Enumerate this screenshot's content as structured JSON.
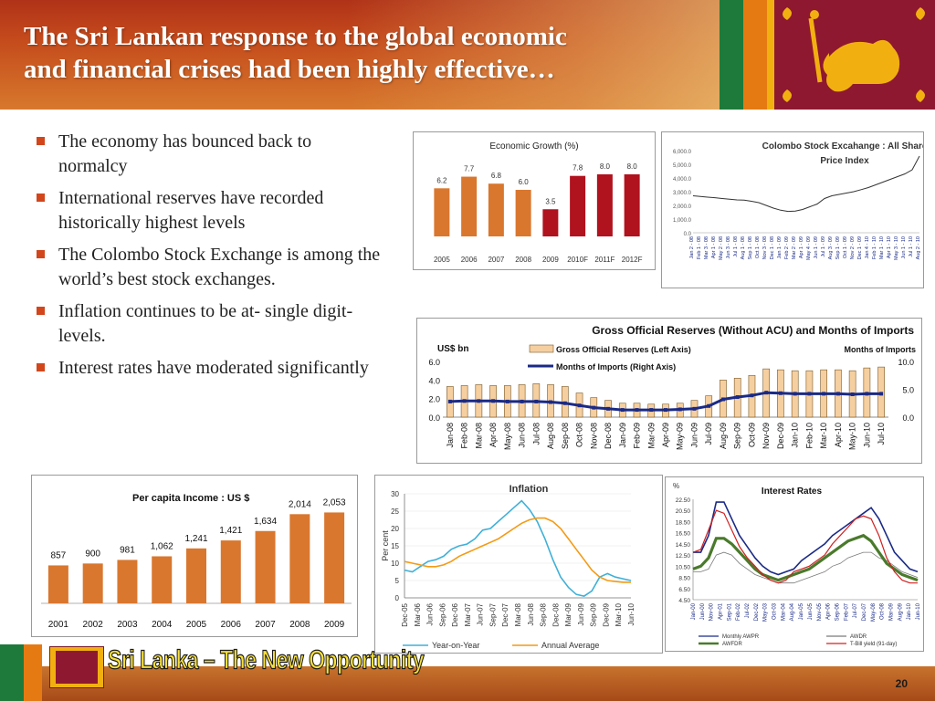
{
  "slide": {
    "title_line1": "The Sri Lankan response to the global economic",
    "title_line2": "and financial crises had been highly effective…",
    "page_number": "20",
    "slogan": "Sri Lanka – The New Opportunity"
  },
  "bullets": [
    "The economy has bounced back to normalcy",
    "International reserves have recorded historically highest levels",
    "The Colombo Stock Exchange is among the world’s best stock exchanges.",
    "Inflation continues to be at- single digit-levels.",
    "Interest rates have moderated significantly"
  ],
  "colors": {
    "header": "#c44a1c",
    "bar_orange": "#d9772f",
    "bar_red": "#b0121e",
    "navy": "#1a2a86",
    "bullet": "#d2461c",
    "slogan": "#f6df3a"
  },
  "chart_data": [
    {
      "type": "bar",
      "title": "Economic Growth (%)",
      "categories": [
        "2005",
        "2006",
        "2007",
        "2008",
        "2009",
        "2010F",
        "2011F",
        "2012F"
      ],
      "values": [
        6.2,
        7.7,
        6.8,
        6.0,
        3.5,
        7.8,
        8.0,
        8.0
      ],
      "labels": [
        "6.2",
        "7.7",
        "6.8",
        "6.0",
        "3.5",
        "7.8",
        "8.0",
        "8.0"
      ],
      "colors": [
        "#d9772f",
        "#d9772f",
        "#d9772f",
        "#d9772f",
        "#b0121e",
        "#b0121e",
        "#b0121e",
        "#b0121e"
      ],
      "ylim": [
        0,
        10
      ],
      "grid": false
    },
    {
      "type": "line",
      "title": "Colombo Stock Excahange : All Share Price Index",
      "yticks": [
        "0.0",
        "1,000.0",
        "2,000.0",
        "3,000.0",
        "4,000.0",
        "5,000.0",
        "6,000.0"
      ],
      "ylim": [
        0,
        6000
      ],
      "xticks": [
        "Jan 2 - 08",
        "Feb 1 - 08",
        "Mar 3 - 08",
        "Apr 1 - 08",
        "May 2 - 08",
        "Jun 3 - 08",
        "Jul 1 - 08",
        "Aug 1 - 08",
        "Sep 1 - 08",
        "Oct 1 - 08",
        "Nov 3 - 08",
        "Dec 1 - 08",
        "Jan 1 - 09",
        "Feb 2 - 09",
        "Mar 2 - 09",
        "Apr 1 - 09",
        "May 4 - 09",
        "Jun 1 - 09",
        "Jul 1 - 09",
        "Aug 3 - 09",
        "Sep 1 - 09",
        "Oct 1 - 09",
        "Nov 2 - 09",
        "Dec 1 - 09",
        "Jan 4 - 10",
        "Feb 1 - 10",
        "Mar 1 - 10",
        "Apr 1 - 10",
        "May 3 - 10",
        "Jun 1 - 10",
        "Jul 1 - 10",
        "Aug 2 - 10"
      ],
      "values": [
        2700,
        2650,
        2600,
        2560,
        2500,
        2450,
        2400,
        2380,
        2300,
        2200,
        2000,
        1800,
        1650,
        1560,
        1580,
        1700,
        1900,
        2100,
        2500,
        2700,
        2800,
        2900,
        3000,
        3150,
        3300,
        3500,
        3700,
        3900,
        4100,
        4300,
        4600,
        5600
      ]
    },
    {
      "type": "bar",
      "title": "Gross Official Reserves (Without ACU)  and Months of Imports",
      "ylabel": "US$ bn",
      "y2label": "Months of Imports",
      "legend": [
        "Gross Official Reserves  (Left Axis)",
        "Months of Imports (Right Axis)"
      ],
      "categories": [
        "Jan-08",
        "Feb-08",
        "Mar-08",
        "Apr-08",
        "May-08",
        "Jun-08",
        "Jul-08",
        "Aug-08",
        "Sep-08",
        "Oct-08",
        "Nov-08",
        "Dec-08",
        "Jan-09",
        "Feb-09",
        "Mar-09",
        "Apr-09",
        "May-09",
        "Jun-09",
        "Jul-09",
        "Aug-09",
        "Sep-09",
        "Oct-09",
        "Nov-09",
        "Dec-09",
        "Jan-10",
        "Feb-10",
        "Mar-10",
        "Apr-10",
        "May-10",
        "Jun-10",
        "Jul-10"
      ],
      "series": [
        {
          "name": "Gross Official Reserves  (Left Axis)",
          "axis": "left",
          "values": [
            3.3,
            3.4,
            3.5,
            3.4,
            3.4,
            3.5,
            3.6,
            3.5,
            3.3,
            2.6,
            2.1,
            1.8,
            1.5,
            1.5,
            1.4,
            1.4,
            1.5,
            1.8,
            2.3,
            4.0,
            4.2,
            4.5,
            5.2,
            5.1,
            5.0,
            5.0,
            5.1,
            5.1,
            5.0,
            5.3,
            5.4
          ]
        },
        {
          "name": "Months of Imports (Right Axis)",
          "axis": "right",
          "values": [
            2.8,
            2.9,
            2.9,
            2.9,
            2.8,
            2.8,
            2.8,
            2.7,
            2.5,
            2.1,
            1.7,
            1.5,
            1.3,
            1.3,
            1.3,
            1.3,
            1.4,
            1.5,
            2.0,
            3.2,
            3.6,
            3.9,
            4.4,
            4.3,
            4.2,
            4.2,
            4.2,
            4.2,
            4.1,
            4.2,
            4.2
          ]
        }
      ],
      "yticks": [
        "0.0",
        "2.0",
        "4.0",
        "6.0"
      ],
      "y2ticks": [
        "0.0",
        "5.0",
        "10.0"
      ],
      "ylim": [
        0,
        6
      ],
      "y2lim": [
        0,
        10
      ]
    },
    {
      "type": "bar",
      "title": "Per capita Income : US $",
      "categories": [
        "2001",
        "2002",
        "2003",
        "2004",
        "2005",
        "2006",
        "2007",
        "2008",
        "2009"
      ],
      "values": [
        857,
        900,
        981,
        1062,
        1241,
        1421,
        1634,
        2014,
        2053
      ],
      "labels": [
        "857",
        "900",
        "981",
        "1,062",
        "1,241",
        "1,421",
        "1,634",
        "2,014",
        "2,053"
      ],
      "ylim": [
        0,
        2200
      ]
    },
    {
      "type": "line",
      "title": "Inflation",
      "ylabel": "Per cent",
      "yticks": [
        "0",
        "5",
        "10",
        "15",
        "20",
        "25",
        "30"
      ],
      "ylim": [
        0,
        30
      ],
      "xticks": [
        "Dec-05",
        "Mar-06",
        "Jun-06",
        "Sep-06",
        "Dec-06",
        "Mar-07",
        "Jun-07",
        "Sep-07",
        "Dec-07",
        "Mar-08",
        "Jun-08",
        "Sep-08",
        "Dec-08",
        "Mar-09",
        "Jun-09",
        "Sep-09",
        "Dec-09",
        "Mar-10",
        "Jun-10"
      ],
      "series": [
        {
          "name": "Year-on-Year",
          "values": [
            8,
            7.5,
            9,
            10.5,
            11,
            12,
            14,
            15,
            15.5,
            17,
            19.5,
            20,
            22,
            24,
            26,
            28,
            25.5,
            22,
            17,
            11,
            6,
            3,
            1,
            0.5,
            2,
            6,
            7,
            6,
            5.5,
            5
          ]
        },
        {
          "name": "Annual Average",
          "values": [
            10.5,
            10,
            9.5,
            9,
            9,
            9.5,
            10.5,
            12,
            13,
            14,
            15,
            16,
            17,
            18.5,
            20,
            21.5,
            22.5,
            23,
            23,
            22,
            20,
            17,
            14,
            11,
            8,
            6,
            5,
            4.7,
            4.5,
            4.5
          ]
        }
      ]
    },
    {
      "type": "line",
      "title": "Interest Rates",
      "ylabel": "%",
      "yticks": [
        "4.50",
        "6.50",
        "8.50",
        "10.50",
        "12.50",
        "14.50",
        "16.50",
        "18.50",
        "20.50",
        "22.50"
      ],
      "ylim": [
        4.5,
        22.5
      ],
      "xticks": [
        "Jan-00",
        "Jun-00",
        "Nov-00",
        "Apr-01",
        "Sep-01",
        "Feb-02",
        "Jul-02",
        "Dec-02",
        "May-03",
        "Oct-03",
        "Mar-04",
        "Aug-04",
        "Jan-05",
        "Jun-05",
        "Nov-05",
        "Apr-06",
        "Sep-06",
        "Feb-07",
        "Jul-07",
        "Dec-07",
        "May-08",
        "Oct-08",
        "Mar-09",
        "Aug-09",
        "Jan-10",
        "Jun-10"
      ],
      "series": [
        {
          "name": "Monthly AWPR",
          "values": [
            13,
            13,
            16,
            22,
            22,
            19,
            16,
            14,
            12,
            10.5,
            9.5,
            9,
            9.5,
            10,
            11.5,
            12.5,
            13.5,
            14.5,
            16,
            17,
            18,
            19,
            20,
            21,
            19,
            16,
            13,
            11.5,
            10,
            9.5
          ]
        },
        {
          "name": "AWDR",
          "values": [
            9.5,
            9.5,
            10,
            12.5,
            13,
            12.5,
            11,
            10,
            9,
            8.5,
            8,
            7.5,
            7.5,
            7.5,
            8,
            8.5,
            9,
            9.5,
            10.5,
            11,
            12,
            12.5,
            13,
            13,
            12,
            11.5,
            10.5,
            9.5,
            9,
            8.5
          ]
        },
        {
          "name": "AWFDR",
          "values": [
            10,
            10.5,
            12,
            15.5,
            15.5,
            14.5,
            13,
            11.5,
            10,
            9,
            8.5,
            8,
            8.5,
            9,
            9.5,
            10,
            11,
            12,
            13,
            14,
            15,
            15.5,
            16,
            15,
            13,
            11,
            10,
            9,
            8.5,
            8
          ]
        },
        {
          "name": "T-Bill yield (91-day)",
          "values": [
            13,
            13.5,
            17,
            20.5,
            20,
            17,
            14,
            12,
            10.5,
            9,
            8,
            7.5,
            8,
            9.5,
            10,
            10.5,
            11.5,
            12.5,
            14.5,
            16,
            17.5,
            19,
            19.5,
            19,
            16,
            12,
            9.5,
            8,
            7.5,
            7.5
          ]
        }
      ],
      "series_colors": [
        "#1a2a86",
        "#7a7a7a",
        "#4a7a2c",
        "#d02020"
      ]
    }
  ]
}
